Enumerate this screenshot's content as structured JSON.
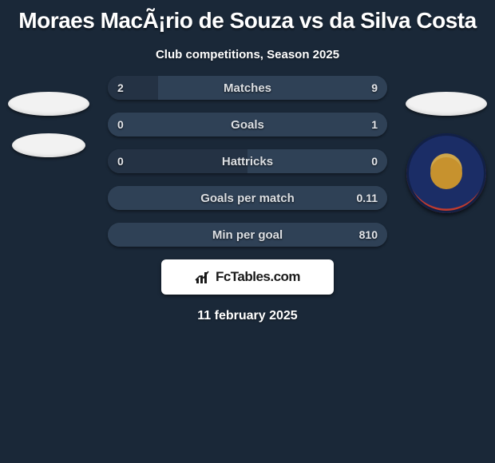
{
  "background_color": "#1a2838",
  "title": "Moraes MacÃ¡rio de Souza vs da Silva Costa",
  "subtitle": "Club competitions, Season 2025",
  "date": "11 february 2025",
  "logo": {
    "text": "FcTables.com",
    "icon_color": "#1a1a1a",
    "box_bg": "#ffffff"
  },
  "left_badges": {
    "ellipse1_color": "#f2f2f2",
    "ellipse2_color": "#f2f2f2"
  },
  "right_badges": {
    "ellipse_color": "#f2f2f2",
    "club_ring_outer": "#c23b2e",
    "club_ring_mid": "#1b2d66",
    "club_center": "#c7922e"
  },
  "bars": {
    "pill_bg": "#2a3a4c",
    "fill_left_color": "#243244",
    "fill_right_color": "#2f4156",
    "label_color": "#dcdfe3",
    "value_color": "#e4e6ea",
    "rows": [
      {
        "label": "Matches",
        "left_val": "2",
        "right_val": "9",
        "left_pct": 18,
        "right_pct": 82
      },
      {
        "label": "Goals",
        "left_val": "0",
        "right_val": "1",
        "left_pct": 0,
        "right_pct": 100
      },
      {
        "label": "Hattricks",
        "left_val": "0",
        "right_val": "0",
        "left_pct": 50,
        "right_pct": 50
      },
      {
        "label": "Goals per match",
        "left_val": "",
        "right_val": "0.11",
        "left_pct": 0,
        "right_pct": 100
      },
      {
        "label": "Min per goal",
        "left_val": "",
        "right_val": "810",
        "left_pct": 0,
        "right_pct": 100
      }
    ]
  }
}
